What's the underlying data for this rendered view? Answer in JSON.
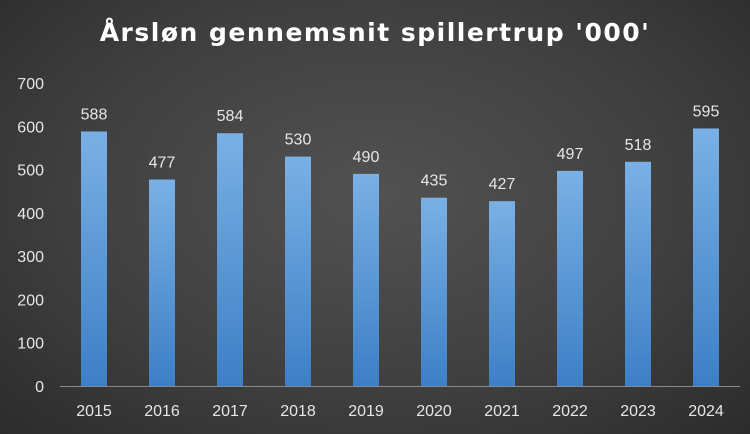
{
  "chart_data": {
    "type": "bar",
    "title": "Årsløn gennemsnit spillertrup '000'",
    "xlabel": "",
    "ylabel": "",
    "categories": [
      "2015",
      "2016",
      "2017",
      "2018",
      "2019",
      "2020",
      "2021",
      "2022",
      "2023",
      "2024"
    ],
    "values": [
      588,
      477,
      584,
      530,
      490,
      435,
      427,
      497,
      518,
      595
    ],
    "ylim": [
      0,
      700
    ],
    "yticks": [
      0,
      100,
      200,
      300,
      400,
      500,
      600,
      700
    ],
    "data_labels": true,
    "grid": false,
    "legend": "none",
    "colors": {
      "bar_top": "#7ab0e4",
      "bar_bottom": "#3d7fc6",
      "axis_line": "#8a8a8a",
      "text": "#e6e6e6",
      "title": "#ffffff"
    }
  }
}
